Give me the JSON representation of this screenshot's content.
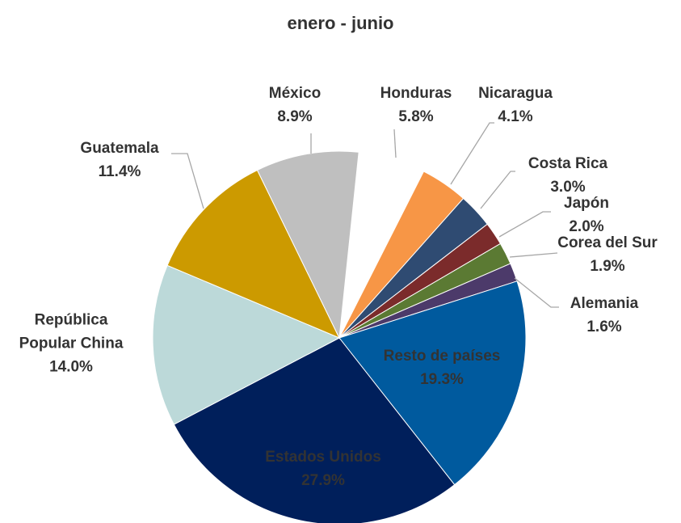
{
  "chart_data": {
    "type": "pie",
    "title": "enero - junio",
    "categories": [
      "Honduras",
      "Nicaragua",
      "Costa Rica",
      "Japón",
      "Corea del Sur",
      "Alemania",
      "Resto de países",
      "Estados Unidos",
      "República Popular China",
      "Guatemala",
      "México"
    ],
    "values": [
      5.8,
      4.1,
      3.0,
      2.0,
      1.9,
      1.6,
      19.3,
      27.9,
      14.0,
      11.4,
      8.9
    ],
    "value_labels": [
      "5.8%",
      "4.1%",
      "3.0%",
      "2.0%",
      "1.9%",
      "1.6%",
      "19.3%",
      "27.9%",
      "14.0%",
      "11.4%",
      "8.9%"
    ],
    "colors": [
      "#ffffff",
      "#f79646",
      "#2f4b72",
      "#7b2b2b",
      "#5b7a33",
      "#4c3a6a",
      "#005a9e",
      "#001f5b",
      "#bcd9d9",
      "#cc9a00",
      "#bfbfbf"
    ]
  }
}
